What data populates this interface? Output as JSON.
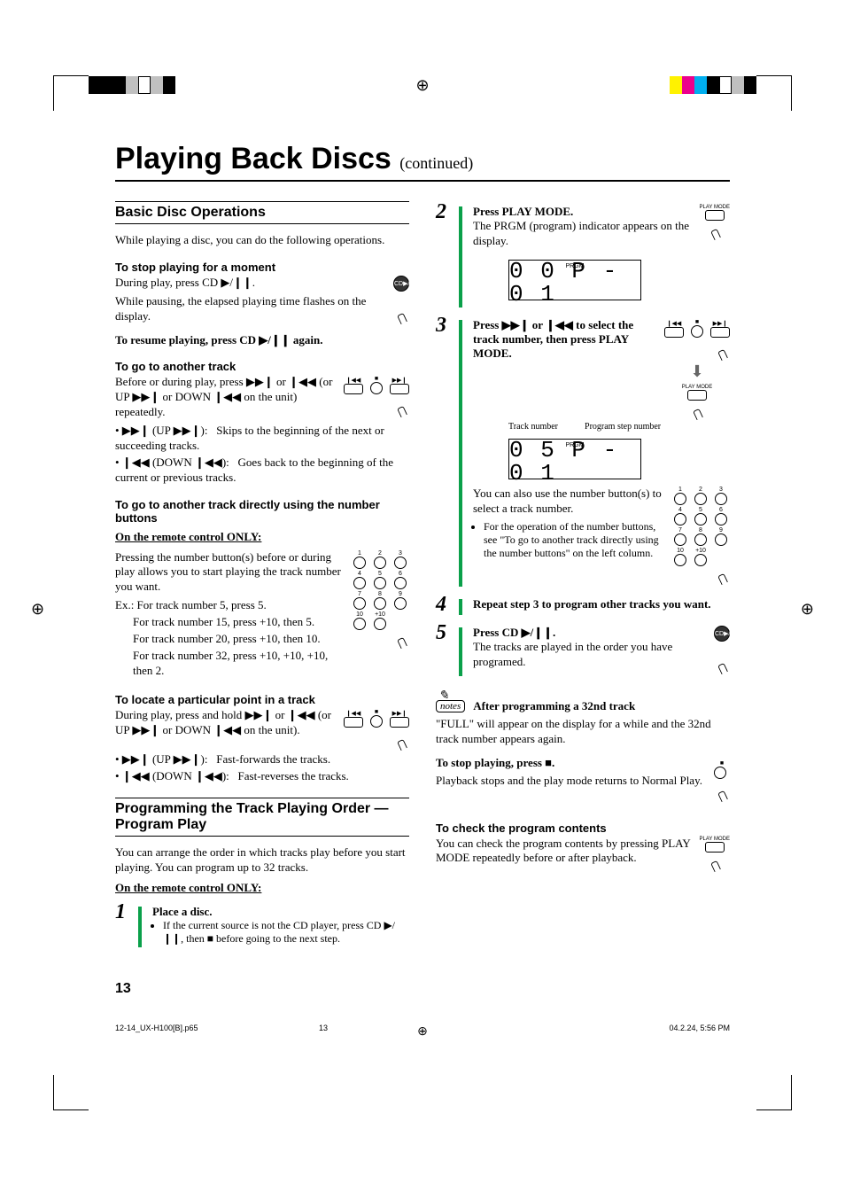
{
  "pageTitle": "Playing Back Discs",
  "pageTitleCont": "(continued)",
  "basicOps": {
    "heading": "Basic Disc Operations",
    "intro": "While playing a disc, you can do the following operations.",
    "stopMoment": {
      "title": "To stop playing for a moment",
      "line1": "During play, press CD ▶/❙❙.",
      "line2": "While pausing, the elapsed playing time flashes on the display.",
      "resume": "To resume playing, press CD ▶/❙❙ again."
    },
    "anotherTrack": {
      "title": "To go to another track",
      "body": "Before or during play, press ▶▶❙ or ❙◀◀ (or UP ▶▶❙ or DOWN ❙◀◀ on the unit) repeatedly.",
      "bullets": [
        {
          "sym": "▶▶❙ (UP ▶▶❙):",
          "desc": "Skips to the beginning of the next or succeeding tracks."
        },
        {
          "sym": "❙◀◀ (DOWN ❙◀◀):",
          "desc": "Goes back to the beginning of the current or previous tracks."
        }
      ]
    },
    "directNumber": {
      "title": "To go to another track directly using the number buttons",
      "remoteOnly": "On the remote control ONLY:",
      "body": "Pressing the number button(s) before or during play allows you to start playing the track number you want.",
      "examples": [
        "Ex.: For track number 5, press 5.",
        "For track number 15, press +10, then 5.",
        "For track number 20, press +10, then 10.",
        "For track number 32, press +10, +10, +10, then 2."
      ]
    },
    "locatePoint": {
      "title": "To locate a particular point in a track",
      "body": "During play, press and hold ▶▶❙ or ❙◀◀ (or UP ▶▶❙ or DOWN ❙◀◀ on the unit).",
      "bullets": [
        {
          "sym": "▶▶❙ (UP ▶▶❙):",
          "desc": "Fast-forwards the tracks."
        },
        {
          "sym": "❙◀◀ (DOWN ❙◀◀):",
          "desc": "Fast-reverses the tracks."
        }
      ]
    }
  },
  "programPlay": {
    "heading": "Programming the Track Playing Order —Program Play",
    "intro": "You can arrange the order in which tracks play before you start playing. You can program up to 32 tracks.",
    "remoteOnly": "On the remote control ONLY:",
    "steps": {
      "s1": {
        "lead": "Place a disc.",
        "bullet": "If the current source is not the CD player, press CD ▶/❙❙, then ■ before going to the next step."
      },
      "s2": {
        "lead": "Press PLAY MODE.",
        "body": "The PRGM (program) indicator appears on the display."
      },
      "s3": {
        "lead": "Press ▶▶❙ or ❙◀◀ to select the track number, then press PLAY MODE.",
        "labelTrack": "Track number",
        "labelStep": "Program step number",
        "body1": "You can also use the number button(s) to select a track number.",
        "bullet": "For the operation of the number buttons, see \"To go to another track directly using the number buttons\" on the left column."
      },
      "s4": {
        "lead": "Repeat step 3 to program other tracks you want."
      },
      "s5": {
        "lead": "Press CD ▶/❙❙.",
        "body": "The tracks are played in the order you have programed."
      }
    },
    "note": {
      "title": "After programming a 32nd track",
      "body": "\"FULL\" will appear on the display for a while and the 32nd track number appears again."
    },
    "stop": {
      "lead": "To stop playing, press ■.",
      "body": "Playback stops and the play mode returns to Normal Play."
    },
    "check": {
      "title": "To check the program contents",
      "body": "You can check the program contents by pressing PLAY MODE repeatedly before or after playback."
    }
  },
  "lcd1": {
    "prgm": "PRGM",
    "digits": "0 0  P - 0 1"
  },
  "lcd2": {
    "prgm": "PRGM",
    "digits": "0 5  P - 0 1"
  },
  "keypadLabels": [
    "1",
    "2",
    "3",
    "4",
    "5",
    "6",
    "7",
    "8",
    "9",
    "10",
    "+10",
    ""
  ],
  "playModeLabel": "PLAY\nMODE",
  "cdLabel": "CD▶/❙❙",
  "pageNumber": "13",
  "footerFile": "12-14_UX-H100[B].p65",
  "footerPage": "13",
  "footerDate": "04.2.24, 5:56 PM",
  "regColorsLeft": [
    "#000",
    "#000",
    "#000",
    "#c0c0c0",
    "#fff",
    "#c0c0c0",
    "#000"
  ],
  "regColorsRight": [
    "#fff200",
    "#ec008c",
    "#00aeef",
    "#000",
    "#fff",
    "#c0c0c0",
    "#000"
  ]
}
